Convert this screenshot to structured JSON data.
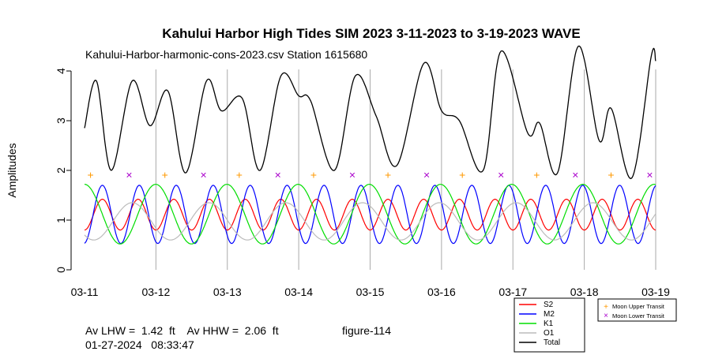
{
  "chart_data": {
    "type": "line",
    "title": "Kahului Harbor High Tides SIM 2023 3-11-2023 to 3-19-2023 WAVE",
    "subtitle": "Kahului-Harbor-harmonic-cons-2023.csv    Station  1615680",
    "xlabel": "",
    "ylabel": "Amplitudes",
    "x_ticks": [
      "03-11",
      "03-12",
      "03-13",
      "03-14",
      "03-15",
      "03-16",
      "03-17",
      "03-18",
      "03-19"
    ],
    "xlim": [
      "03-11",
      "03-19"
    ],
    "y_ticks": [
      "0",
      "1",
      "2",
      "3",
      "4"
    ],
    "ylim": [
      0,
      4.4
    ],
    "grid": "vertical lines at each day",
    "legend_placement": "bottom-right, below plot",
    "series": [
      {
        "name": "S2",
        "color": "#ff0000",
        "period_hours": 12.0,
        "min": 0.8,
        "max": 1.42,
        "first_peak": "03-11 06:00"
      },
      {
        "name": "M2",
        "color": "#0000ff",
        "period_hours": 12.42,
        "min": 0.53,
        "max": 1.7,
        "first_peak": "03-11 06:00"
      },
      {
        "name": "K1",
        "color": "#00dd00",
        "period_hours": 23.93,
        "min": 0.52,
        "max": 1.72,
        "first_peak": "03-11 00:00"
      },
      {
        "name": "O1",
        "color": "#bbbbbb",
        "period_hours": 25.82,
        "min": 0.6,
        "max": 1.35,
        "first_peak": "03-11 16:00"
      },
      {
        "name": "Total",
        "color": "#000000",
        "note": "sum of constituents, shifted",
        "points": [
          [
            "03-11 00:00",
            2.85
          ],
          [
            "03-11 04:00",
            3.8
          ],
          [
            "03-11 09:00",
            2.0
          ],
          [
            "03-11 16:00",
            3.8
          ],
          [
            "03-11 22:00",
            2.9
          ],
          [
            "03-12 04:00",
            3.6
          ],
          [
            "03-12 10:00",
            1.95
          ],
          [
            "03-12 17:00",
            3.8
          ],
          [
            "03-12 22:00",
            3.2
          ],
          [
            "03-13 05:00",
            3.45
          ],
          [
            "03-13 11:00",
            2.0
          ],
          [
            "03-13 18:00",
            3.9
          ],
          [
            "03-14 00:00",
            3.5
          ],
          [
            "03-14 04:00",
            3.4
          ],
          [
            "03-14 12:00",
            2.0
          ],
          [
            "03-14 19:00",
            3.9
          ],
          [
            "03-15 02:00",
            3.1
          ],
          [
            "03-15 09:00",
            2.1
          ],
          [
            "03-15 18:00",
            4.15
          ],
          [
            "03-16 00:00",
            3.2
          ],
          [
            "03-16 06:00",
            3.0
          ],
          [
            "03-16 14:00",
            2.0
          ],
          [
            "03-16 20:00",
            4.4
          ],
          [
            "03-17 05:00",
            2.75
          ],
          [
            "03-17 09:00",
            2.95
          ],
          [
            "03-17 15:00",
            1.95
          ],
          [
            "03-17 22:00",
            4.5
          ],
          [
            "03-18 05:00",
            2.6
          ],
          [
            "03-18 09:00",
            3.25
          ],
          [
            "03-18 16:00",
            1.85
          ],
          [
            "03-18 22:30",
            4.3
          ],
          [
            "03-19 00:00",
            4.2
          ]
        ]
      }
    ],
    "transits": {
      "upper": {
        "label": "Moon Upper Transit",
        "symbol": "+",
        "color": "#ff9900",
        "y": 1.9,
        "x": [
          "03-11 02:00",
          "03-12 03:00",
          "03-13 04:00",
          "03-14 05:00",
          "03-15 06:00",
          "03-16 07:00",
          "03-17 08:00",
          "03-18 09:00"
        ]
      },
      "lower": {
        "label": "Moon Lower Transit",
        "symbol": "×",
        "color": "#aa00cc",
        "y": 1.9,
        "x": [
          "03-11 15:00",
          "03-12 16:00",
          "03-13 17:00",
          "03-14 18:00",
          "03-15 19:00",
          "03-16 20:00",
          "03-17 21:00",
          "03-18 22:00"
        ]
      }
    }
  },
  "footer": {
    "av_line": "Av LHW =  1.42  ft    Av HHW =  2.06  ft",
    "figure": "figure-114",
    "timestamp": "01-27-2024   08:33:47"
  }
}
